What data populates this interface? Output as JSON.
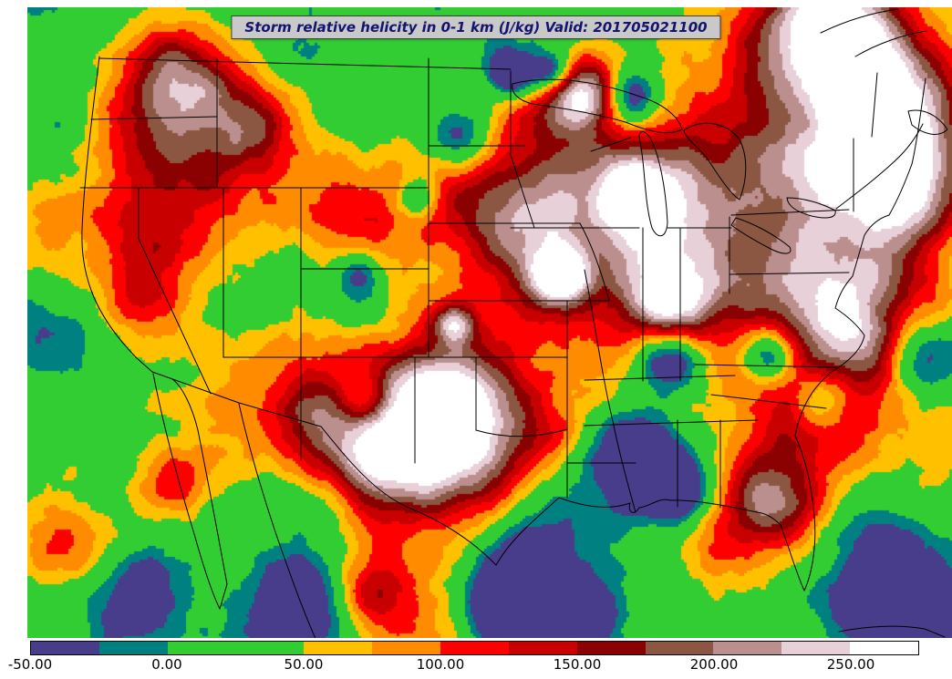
{
  "title": {
    "text": "Storm relative helicity in 0-1 km (J/kg) Valid: 201705021100"
  },
  "colorbar": {
    "min": -50,
    "max": 275,
    "step": 25,
    "colors": [
      "#483D8B",
      "#008080",
      "#32CD32",
      "#32CD32",
      "#FFC000",
      "#FF8C00",
      "#FF0000",
      "#C80000",
      "#8B0000",
      "#8B5742",
      "#BC8F8F",
      "#E8D0D8",
      "#FFFFFF"
    ],
    "ticks": [
      {
        "label": "-50.00",
        "value": -50
      },
      {
        "label": "0.00",
        "value": 0
      },
      {
        "label": "50.00",
        "value": 50
      },
      {
        "label": "100.00",
        "value": 100
      },
      {
        "label": "150.00",
        "value": 150
      },
      {
        "label": "200.00",
        "value": 200
      },
      {
        "label": "250.00",
        "value": 250
      }
    ]
  },
  "chart_data": {
    "type": "filled_contour_map",
    "variable": "Storm relative helicity in 0-1 km",
    "units": "J/kg",
    "valid_time": "201705021100",
    "area": "Continental United States and surrounding waters",
    "levels_min": -50,
    "levels_max": 275,
    "level_step": 25,
    "background": {
      "offset": -45,
      "scale": 165
    },
    "features": [
      {
        "x": 0.15,
        "y": 0.25,
        "r": 70,
        "a": 160
      },
      {
        "x": 0.16,
        "y": 0.11,
        "r": 40,
        "a": 140
      },
      {
        "x": 0.24,
        "y": 0.18,
        "r": 35,
        "a": 100
      },
      {
        "x": 0.33,
        "y": 0.33,
        "r": 50,
        "a": 90
      },
      {
        "x": 0.46,
        "y": 0.5,
        "r": 16,
        "a": 150
      },
      {
        "x": 0.45,
        "y": 0.3,
        "r": 35,
        "a": 80
      },
      {
        "x": 0.53,
        "y": 0.36,
        "r": 45,
        "a": 120
      },
      {
        "x": 0.67,
        "y": 0.3,
        "r": 110,
        "a": 150
      },
      {
        "x": 0.7,
        "y": 0.33,
        "r": 50,
        "a": 80
      },
      {
        "x": 0.69,
        "y": 0.46,
        "r": 35,
        "a": 170
      },
      {
        "x": 0.575,
        "y": 0.425,
        "r": 22,
        "a": 190
      },
      {
        "x": 0.6,
        "y": 0.13,
        "r": 25,
        "a": 160
      },
      {
        "x": 0.655,
        "y": 0.3,
        "r": 28,
        "a": 140
      },
      {
        "x": 0.463,
        "y": 0.68,
        "r": 60,
        "a": 230
      },
      {
        "x": 0.43,
        "y": 0.63,
        "r": 45,
        "a": 140
      },
      {
        "x": 0.32,
        "y": 0.66,
        "r": 40,
        "a": 120
      },
      {
        "x": 0.38,
        "y": 0.73,
        "r": 35,
        "a": 110
      },
      {
        "x": 0.93,
        "y": 0.15,
        "r": 55,
        "a": 200
      },
      {
        "x": 0.95,
        "y": 0.3,
        "r": 50,
        "a": 195
      },
      {
        "x": 0.91,
        "y": 0.45,
        "r": 45,
        "a": 150
      },
      {
        "x": 0.86,
        "y": 0.25,
        "r": 60,
        "a": 120
      },
      {
        "x": 0.81,
        "y": 0.43,
        "r": 50,
        "a": 130
      },
      {
        "x": 0.87,
        "y": 0.04,
        "r": 55,
        "a": 210
      },
      {
        "x": 0.74,
        "y": 0.85,
        "r": 40,
        "a": 90
      },
      {
        "x": 0.8,
        "y": 0.76,
        "r": 40,
        "a": 100
      },
      {
        "x": 0.86,
        "y": 0.64,
        "r": 40,
        "a": 110
      },
      {
        "x": 0.89,
        "y": 0.52,
        "r": 35,
        "a": 100
      },
      {
        "x": 0.82,
        "y": 0.8,
        "r": 35,
        "a": 90
      },
      {
        "x": 0.12,
        "y": 0.45,
        "r": 35,
        "a": 80
      },
      {
        "x": 0.16,
        "y": 0.75,
        "r": 30,
        "a": 90
      },
      {
        "x": 0.03,
        "y": 0.85,
        "r": 35,
        "a": 90
      },
      {
        "x": 0.37,
        "y": 0.93,
        "r": 30,
        "a": 100
      },
      {
        "x": 0.015,
        "y": 0.5,
        "r": 40,
        "a": -80
      },
      {
        "x": 0.03,
        "y": 0.2,
        "r": 40,
        "a": -80
      },
      {
        "x": 0.65,
        "y": 0.7,
        "r": 35,
        "a": -140
      },
      {
        "x": 0.7,
        "y": 0.76,
        "r": 30,
        "a": -150
      },
      {
        "x": 0.69,
        "y": 0.55,
        "r": 25,
        "a": -130
      },
      {
        "x": 0.55,
        "y": 0.88,
        "r": 50,
        "a": -110
      },
      {
        "x": 0.52,
        "y": 0.95,
        "r": 30,
        "a": -140
      },
      {
        "x": 0.6,
        "y": 0.97,
        "r": 25,
        "a": -120
      },
      {
        "x": 0.93,
        "y": 0.92,
        "r": 60,
        "a": -120
      },
      {
        "x": 0.97,
        "y": 0.55,
        "r": 30,
        "a": -90
      },
      {
        "x": 0.355,
        "y": 0.42,
        "r": 20,
        "a": -100
      },
      {
        "x": 0.42,
        "y": 0.3,
        "r": 15,
        "a": -90
      },
      {
        "x": 0.36,
        "y": 0.62,
        "r": 22,
        "a": -100
      },
      {
        "x": 0.47,
        "y": 0.2,
        "r": 25,
        "a": -110
      },
      {
        "x": 0.52,
        "y": 0.105,
        "r": 18,
        "a": -150
      },
      {
        "x": 0.3,
        "y": 0.95,
        "r": 40,
        "a": -100
      },
      {
        "x": 0.12,
        "y": 0.92,
        "r": 35,
        "a": -90
      },
      {
        "x": 0.655,
        "y": 0.14,
        "r": 22,
        "a": -140
      },
      {
        "x": 0.857,
        "y": 0.62,
        "r": 25,
        "a": -150
      },
      {
        "x": 0.8,
        "y": 0.55,
        "r": 20,
        "a": -140
      },
      {
        "x": 0.565,
        "y": 0.1,
        "r": 16,
        "a": -140
      }
    ]
  }
}
